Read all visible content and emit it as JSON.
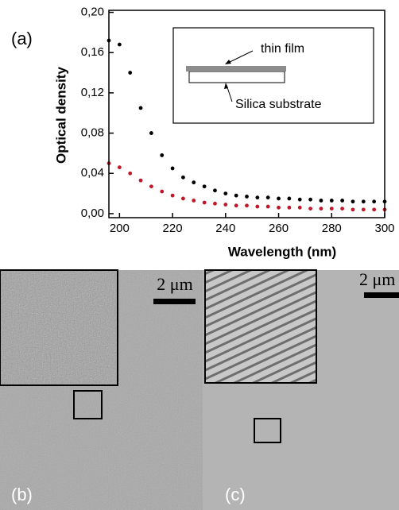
{
  "chart_data": {
    "type": "scatter",
    "panel_label": "(a)",
    "x_label": "Wavelength (nm)",
    "y_label": "Optical density",
    "annotations": [
      "thin film",
      "Silica substrate"
    ],
    "x": [
      196,
      200,
      204,
      208,
      212,
      216,
      220,
      224,
      228,
      232,
      236,
      240,
      244,
      248,
      252,
      256,
      260,
      264,
      268,
      272,
      276,
      280,
      284,
      288,
      292,
      296,
      300
    ],
    "series": [
      {
        "color": "#000000",
        "values": [
          0.172,
          0.168,
          0.14,
          0.105,
          0.08,
          0.058,
          0.045,
          0.036,
          0.031,
          0.027,
          0.023,
          0.02,
          0.018,
          0.017,
          0.016,
          0.016,
          0.015,
          0.015,
          0.014,
          0.014,
          0.013,
          0.013,
          0.013,
          0.012,
          0.012,
          0.012,
          0.012
        ]
      },
      {
        "color": "#c0182a",
        "values": [
          0.05,
          0.046,
          0.04,
          0.033,
          0.027,
          0.022,
          0.018,
          0.015,
          0.013,
          0.011,
          0.01,
          0.009,
          0.008,
          0.008,
          0.007,
          0.007,
          0.006,
          0.006,
          0.006,
          0.005,
          0.005,
          0.005,
          0.005,
          0.004,
          0.004,
          0.004,
          0.004
        ]
      }
    ],
    "xlim": [
      196,
      300
    ],
    "xticks": [
      200,
      220,
      240,
      260,
      280,
      300
    ],
    "ylim": [
      -0.004,
      0.202
    ],
    "yticks": [
      {
        "value": 0,
        "label": "0,00"
      },
      {
        "value": 0.04,
        "label": "0,04"
      },
      {
        "value": 0.08,
        "label": "0,08"
      },
      {
        "value": 0.12,
        "label": "0,12"
      },
      {
        "value": 0.16,
        "label": "0,16"
      },
      {
        "value": 0.2,
        "label": "0,20"
      }
    ]
  },
  "panels": [
    {
      "label": "(b)",
      "scale_bar": "2 μm"
    },
    {
      "label": "(c)",
      "scale_bar": "2 μm"
    }
  ]
}
